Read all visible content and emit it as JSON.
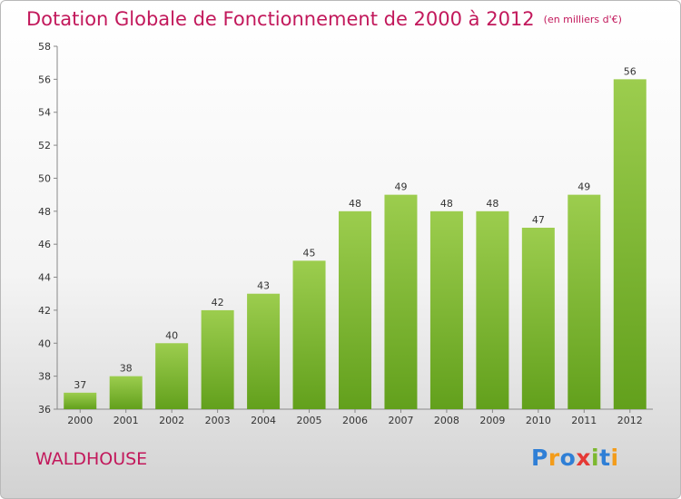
{
  "title": "Dotation Globale de Fonctionnement de 2000 à 2012",
  "unit": "(en milliers d'€)",
  "commune": "WALDHOUSE",
  "logo": {
    "letters": [
      "P",
      "r",
      "o",
      "x",
      "i",
      "t",
      "i"
    ]
  },
  "colors": {
    "bar_top": "#9ccd4e",
    "bar_bottom": "#62a01c",
    "title": "#c2185b"
  },
  "chart_data": {
    "type": "bar",
    "title": "Dotation Globale de Fonctionnement de 2000 à 2012",
    "xlabel": "",
    "ylabel": "",
    "categories": [
      "2000",
      "2001",
      "2002",
      "2003",
      "2004",
      "2005",
      "2006",
      "2007",
      "2008",
      "2009",
      "2010",
      "2011",
      "2012"
    ],
    "values": [
      37,
      38,
      40,
      42,
      43,
      45,
      48,
      49,
      48,
      48,
      47,
      49,
      56
    ],
    "ylim": [
      36,
      58
    ],
    "yticks": [
      36,
      38,
      40,
      42,
      44,
      46,
      48,
      50,
      52,
      54,
      56,
      58
    ],
    "grid": false,
    "legend": "none"
  }
}
